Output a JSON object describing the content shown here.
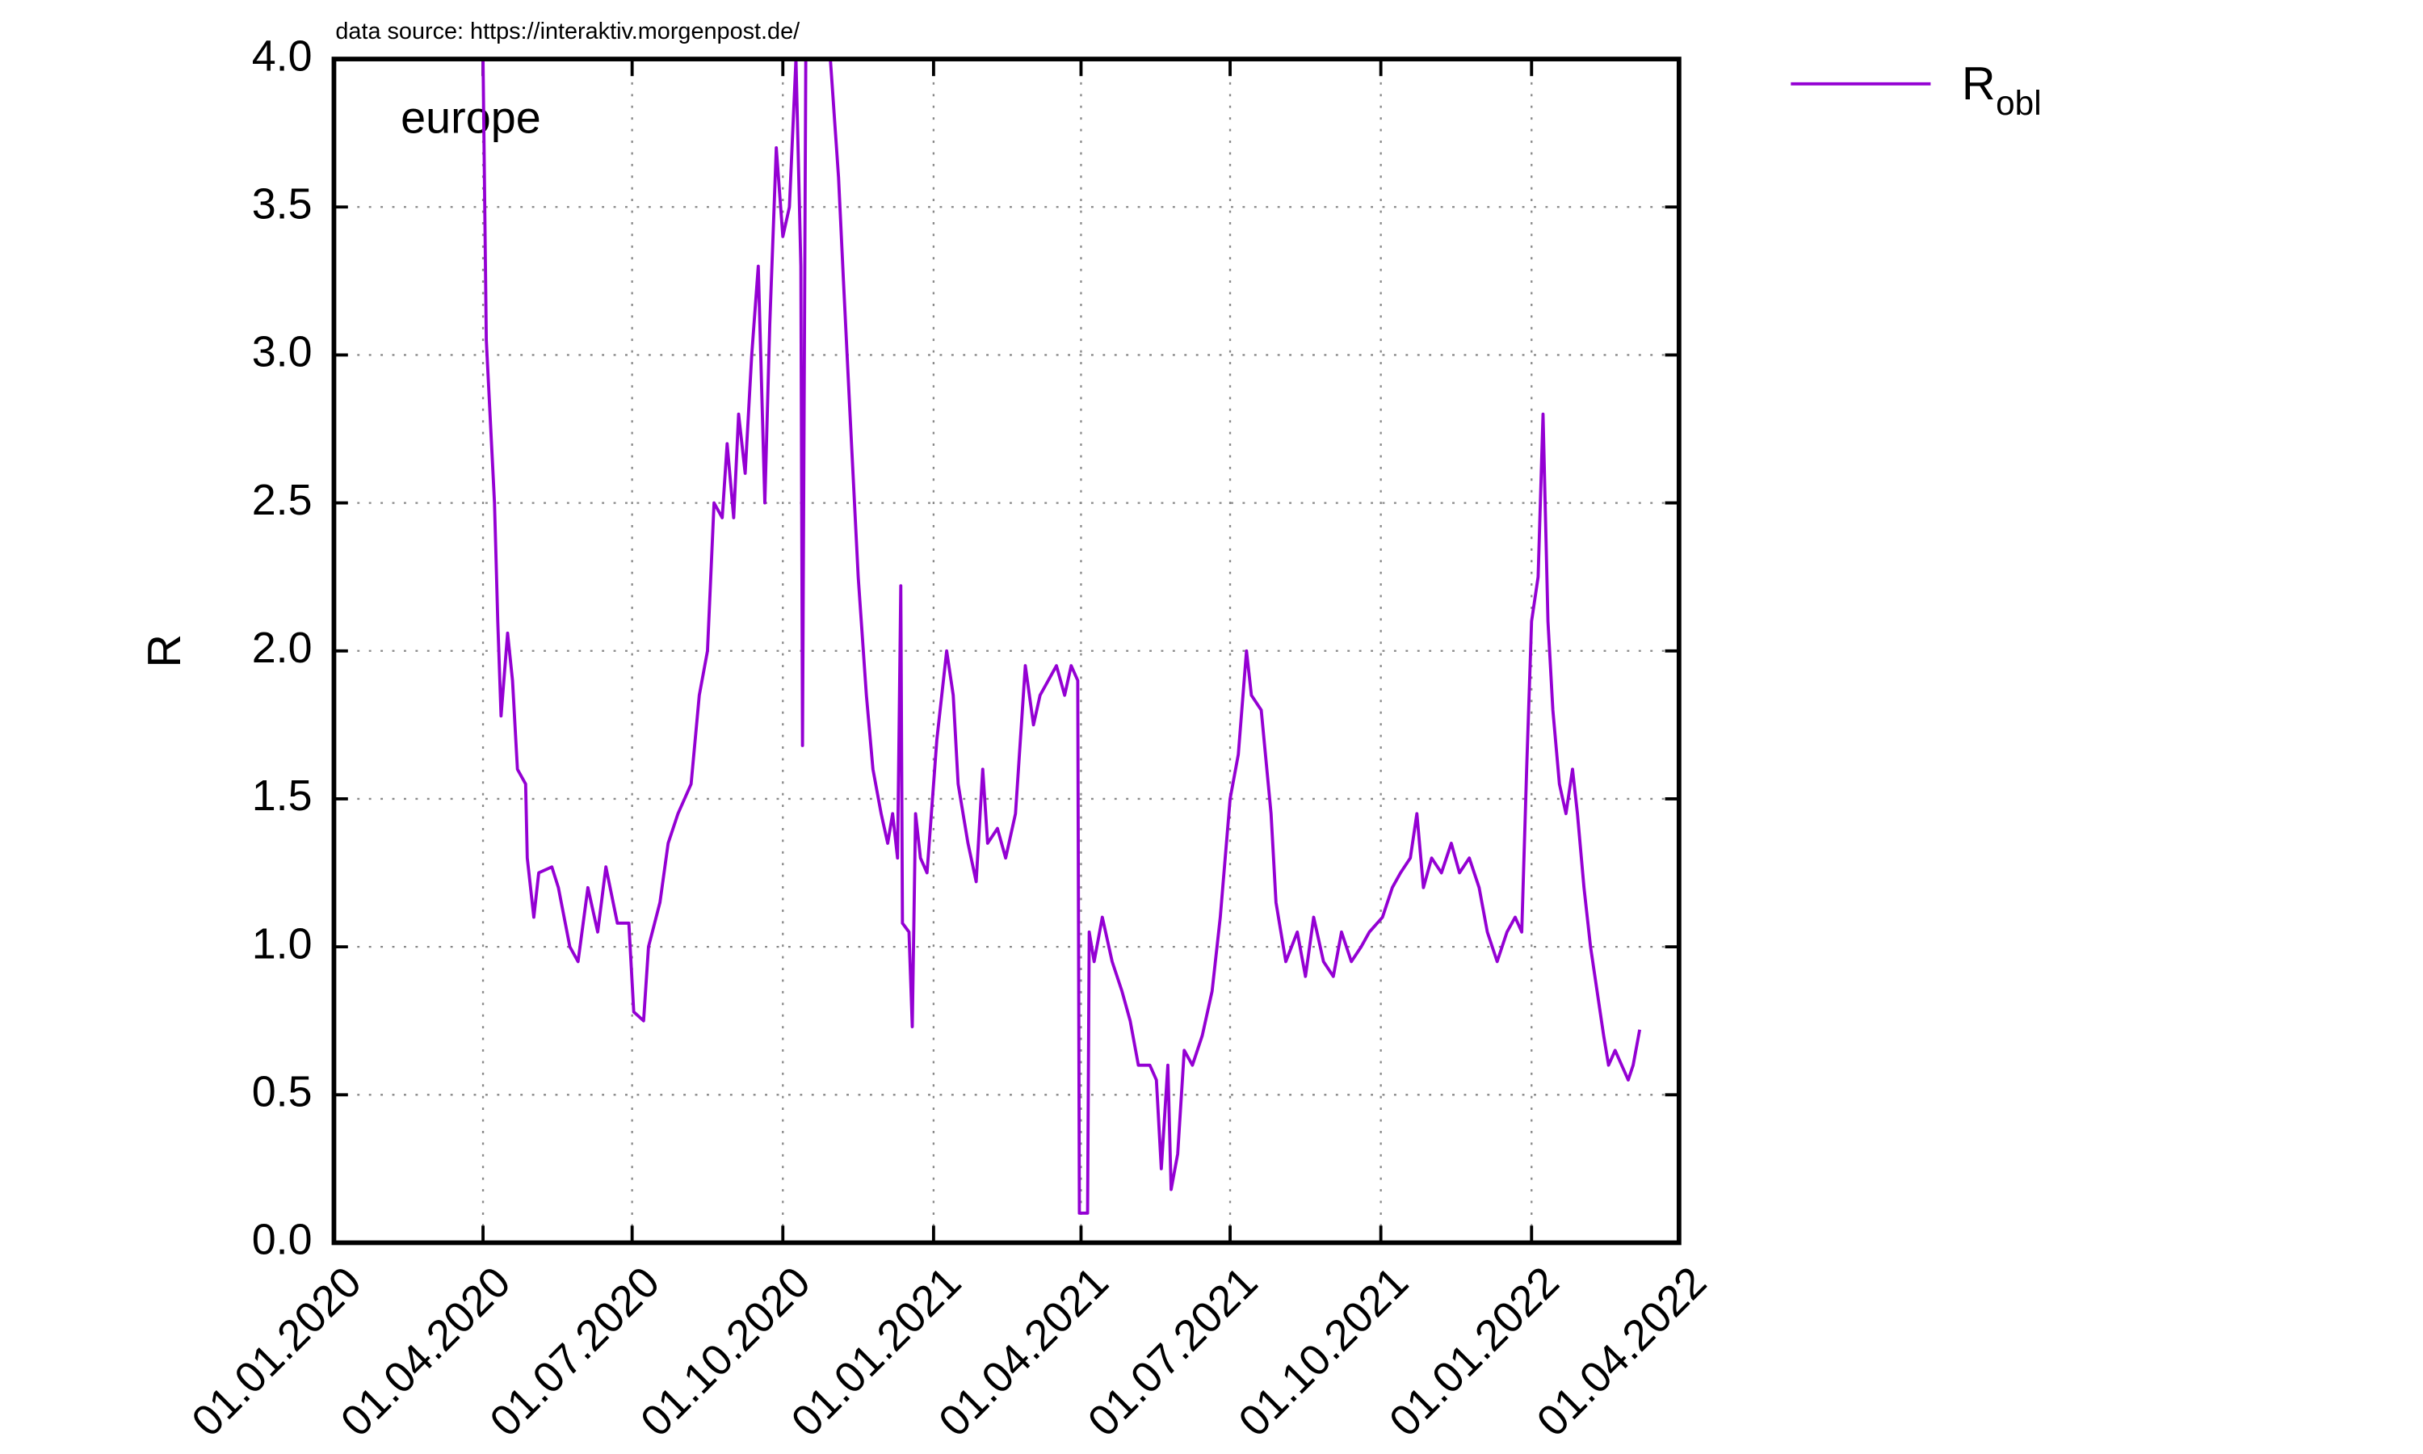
{
  "chart_data": {
    "type": "line",
    "source_note": "data source: https://interaktiv.morgenpost.de/",
    "annotation": "europe",
    "y_label": "R",
    "xlim": [
      "01.01.2020",
      "01.04.2022"
    ],
    "xticks": [
      "01.01.2020",
      "01.04.2020",
      "01.07.2020",
      "01.10.2020",
      "01.01.2021",
      "01.04.2021",
      "01.07.2021",
      "01.10.2021",
      "01.01.2022",
      "01.04.2022"
    ],
    "ylim": [
      0,
      4
    ],
    "yticks": [
      {
        "value": 0,
        "label": "0.0"
      },
      0.5,
      {
        "value": 1,
        "label": "1.0"
      },
      1.5,
      {
        "value": 2,
        "label": "2.0"
      },
      2.5,
      {
        "value": 3,
        "label": "3.0"
      },
      3.5,
      {
        "value": 4,
        "label": "4.0"
      }
    ],
    "grid": true,
    "legend": "top-right-outside",
    "x": [
      "01.04.2020",
      "03.04.2020",
      "08.04.2020",
      "10.04.2020",
      "12.04.2020",
      "16.04.2020",
      "19.04.2020",
      "22.04.2020",
      "27.04.2020",
      "28.04.2020",
      "02.05.2020",
      "05.05.2020",
      "13.05.2020",
      "17.05.2020",
      "24.05.2020",
      "29.05.2020",
      "04.06.2020",
      "10.06.2020",
      "15.06.2020",
      "22.06.2020",
      "29.06.2020",
      "02.07.2020",
      "08.07.2020",
      "11.07.2020",
      "18.07.2020",
      "23.07.2020",
      "29.07.2020",
      "06.08.2020",
      "11.08.2020",
      "16.08.2020",
      "20.08.2020",
      "25.08.2020",
      "28.08.2020",
      "01.09.2020",
      "04.09.2020",
      "08.09.2020",
      "12.09.2020",
      "16.09.2020",
      "20.09.2020",
      "23.09.2020",
      "27.09.2020",
      "01.10.2020",
      "05.10.2020",
      "09.10.2020",
      "12.10.2020",
      "13.10.2020",
      "15.10.2020",
      "30.10.2020",
      "04.11.2020",
      "07.11.2020",
      "11.11.2020",
      "16.11.2020",
      "21.11.2020",
      "25.11.2020",
      "30.11.2020",
      "04.12.2020",
      "07.12.2020",
      "10.12.2020",
      "12.12.2020",
      "13.12.2020",
      "17.12.2020",
      "19.12.2020",
      "21.12.2020",
      "24.12.2020",
      "28.12.2020",
      "03.01.2021",
      "09.01.2021",
      "13.01.2021",
      "16.01.2021",
      "22.01.2021",
      "27.01.2021",
      "31.01.2021",
      "03.02.2021",
      "09.02.2021",
      "14.02.2021",
      "20.02.2021",
      "26.02.2021",
      "03.03.2021",
      "07.03.2021",
      "12.03.2021",
      "17.03.2021",
      "22.03.2021",
      "26.03.2021",
      "30.03.2021",
      "31.03.2021",
      "05.04.2021",
      "06.04.2021",
      "09.04.2021",
      "14.04.2021",
      "20.04.2021",
      "26.04.2021",
      "01.05.2021",
      "06.05.2021",
      "13.05.2021",
      "17.05.2021",
      "20.05.2021",
      "24.05.2021",
      "26.05.2021",
      "30.05.2021",
      "03.06.2021",
      "08.06.2021",
      "14.06.2021",
      "20.06.2021",
      "25.06.2021",
      "01.07.2021",
      "06.07.2021",
      "11.07.2021",
      "14.07.2021",
      "20.07.2021",
      "26.07.2021",
      "29.07.2021",
      "04.08.2021",
      "11.08.2021",
      "16.08.2021",
      "21.08.2021",
      "27.08.2021",
      "02.09.2021",
      "07.09.2021",
      "13.09.2021",
      "19.09.2021",
      "24.09.2021",
      "02.10.2021",
      "08.10.2021",
      "13.10.2021",
      "19.10.2021",
      "23.10.2021",
      "27.10.2021",
      "01.11.2021",
      "07.11.2021",
      "13.11.2021",
      "18.11.2021",
      "24.11.2021",
      "30.11.2021",
      "05.12.2021",
      "11.12.2021",
      "17.12.2021",
      "22.12.2021",
      "26.12.2021",
      "29.12.2021",
      "01.01.2022",
      "05.01.2022",
      "08.01.2022",
      "11.01.2022",
      "14.01.2022",
      "18.01.2022",
      "22.01.2022",
      "26.01.2022",
      "29.01.2022",
      "02.02.2022",
      "06.02.2022",
      "10.02.2022",
      "14.02.2022",
      "17.02.2022",
      "21.02.2022",
      "25.02.2022",
      "01.03.2022",
      "04.03.2022",
      "08.03.2022"
    ],
    "series": [
      {
        "name": "R",
        "subscript": "obl",
        "color": "#9400d3",
        "values": [
          4.0,
          3.05,
          2.5,
          2.1,
          1.78,
          2.06,
          1.9,
          1.6,
          1.55,
          1.3,
          1.1,
          1.25,
          1.27,
          1.2,
          1.0,
          0.95,
          1.2,
          1.05,
          1.27,
          1.08,
          1.08,
          0.78,
          0.75,
          1.0,
          1.15,
          1.35,
          1.45,
          1.55,
          1.85,
          2.0,
          2.5,
          2.45,
          2.7,
          2.45,
          2.8,
          2.6,
          3.0,
          3.3,
          2.5,
          3.1,
          3.7,
          3.4,
          3.5,
          4.0,
          3.3,
          1.68,
          4.0,
          4.0,
          3.6,
          3.25,
          2.8,
          2.25,
          1.85,
          1.6,
          1.45,
          1.35,
          1.45,
          1.3,
          2.22,
          1.08,
          1.05,
          0.73,
          1.45,
          1.3,
          1.25,
          1.7,
          2.0,
          1.85,
          1.55,
          1.35,
          1.22,
          1.6,
          1.35,
          1.4,
          1.3,
          1.45,
          1.95,
          1.75,
          1.85,
          1.9,
          1.95,
          1.85,
          1.95,
          1.9,
          0.1,
          0.1,
          1.05,
          0.95,
          1.1,
          0.95,
          0.85,
          0.75,
          0.6,
          0.6,
          0.55,
          0.25,
          0.6,
          0.18,
          0.3,
          0.65,
          0.6,
          0.7,
          0.85,
          1.1,
          1.5,
          1.65,
          2.0,
          1.85,
          1.8,
          1.45,
          1.15,
          0.95,
          1.05,
          0.9,
          1.1,
          0.95,
          0.9,
          1.05,
          0.95,
          1.0,
          1.05,
          1.1,
          1.2,
          1.25,
          1.3,
          1.45,
          1.2,
          1.3,
          1.25,
          1.35,
          1.25,
          1.3,
          1.2,
          1.05,
          0.95,
          1.05,
          1.1,
          1.05,
          1.6,
          2.1,
          2.25,
          2.8,
          2.1,
          1.8,
          1.55,
          1.45,
          1.6,
          1.45,
          1.2,
          1.0,
          0.85,
          0.7,
          0.6,
          0.65,
          0.6,
          0.55,
          0.6,
          0.72
        ]
      }
    ]
  }
}
